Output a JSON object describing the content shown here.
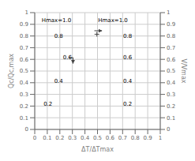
{
  "chart_data": {
    "type": "line",
    "xlabel": "ΔT/ΔTmax",
    "ylabel": "Qc/Qc,max",
    "y2label": "V/Vmax",
    "xlim": [
      0,
      1
    ],
    "ylim": [
      0,
      1
    ],
    "y2lim": [
      0,
      1
    ],
    "xticks": [
      0,
      0.1,
      0.2,
      0.3,
      0.4,
      0.5,
      0.6,
      0.7,
      0.8,
      0.9,
      1
    ],
    "yticks": [
      0,
      0.1,
      0.2,
      0.3,
      0.4,
      0.5,
      0.6,
      0.7,
      0.8,
      0.9,
      1
    ],
    "y2ticks": [
      0,
      0.1,
      0.2,
      0.3,
      0.4,
      0.5,
      0.6,
      0.7,
      0.8,
      0.9,
      1
    ],
    "grid": true,
    "series": [
      {
        "type": "line",
        "marker": "arrow",
        "color": "#444444",
        "x": [
          0.27,
          0.305,
          0.305
        ],
        "values": [
          0.615,
          0.615,
          0.565
        ]
      },
      {
        "type": "line",
        "marker": "arrow",
        "color": "#444444",
        "x": [
          0.475,
          0.535
        ],
        "values": [
          0.845,
          0.845
        ]
      },
      {
        "type": "scatter",
        "marker": "plus",
        "color": "#444444",
        "x": [
          0.495
        ],
        "values": [
          0.815
        ]
      }
    ],
    "annotations": [
      {
        "text": "0.2",
        "x": 0.07,
        "y": 0.215
      },
      {
        "text": "0.4",
        "x": 0.155,
        "y": 0.415
      },
      {
        "text": "0.6",
        "x": 0.225,
        "y": 0.615
      },
      {
        "text": "0.8",
        "x": 0.155,
        "y": 0.795
      },
      {
        "text": "0.2",
        "x": 0.705,
        "y": 0.215
      },
      {
        "text": "0.4",
        "x": 0.705,
        "y": 0.415
      },
      {
        "text": "0.6",
        "x": 0.705,
        "y": 0.615
      },
      {
        "text": "0.8",
        "x": 0.705,
        "y": 0.795
      },
      {
        "text": "Hmax=1.0",
        "x": 0.055,
        "y": 0.93
      },
      {
        "text": "Hmax=1.0",
        "x": 0.505,
        "y": 0.93
      }
    ]
  }
}
